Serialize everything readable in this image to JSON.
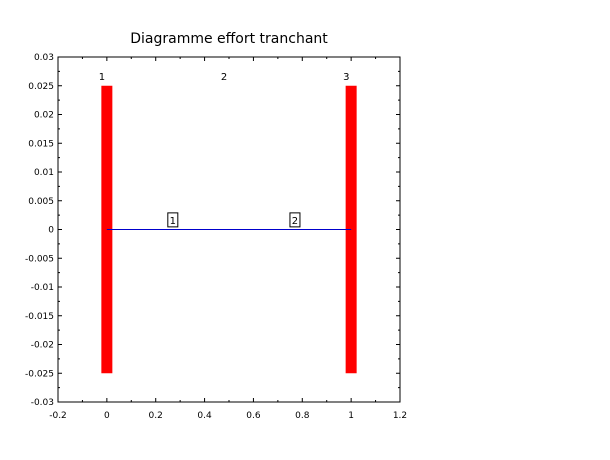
{
  "chart_data": {
    "type": "bar",
    "title": "Diagramme effort tranchant",
    "xlabel": "",
    "ylabel": "",
    "xlim": [
      -0.2,
      1.2
    ],
    "ylim": [
      -0.03,
      0.03
    ],
    "x_ticks": [
      "-0.2",
      "0",
      "0.2",
      "0.4",
      "0.6",
      "0.8",
      "1",
      "1.2"
    ],
    "y_ticks": [
      "0.03",
      "0.025",
      "0.02",
      "0.015",
      "0.01",
      "0.005",
      "0",
      "-0.005",
      "-0.01",
      "-0.015",
      "-0.02",
      "-0.025",
      "-0.03"
    ],
    "grid": false,
    "supports": [
      {
        "x": 0,
        "y_min": -0.025,
        "y_max": 0.025,
        "color": "#ff0000"
      },
      {
        "x": 1,
        "y_min": -0.025,
        "y_max": 0.025,
        "color": "#ff0000"
      }
    ],
    "shear_line": {
      "x": [
        0,
        1
      ],
      "y": [
        0,
        0
      ],
      "color": "#0000cc"
    },
    "node_labels": [
      {
        "label": "1",
        "x": -0.02,
        "y": 0.0265
      },
      {
        "label": "2",
        "x": 0.48,
        "y": 0.0265
      },
      {
        "label": "3",
        "x": 0.98,
        "y": 0.0265
      }
    ],
    "element_labels": [
      {
        "label": "1",
        "x": 0.27,
        "y": 0.0015
      },
      {
        "label": "2",
        "x": 0.77,
        "y": 0.0015
      }
    ]
  }
}
